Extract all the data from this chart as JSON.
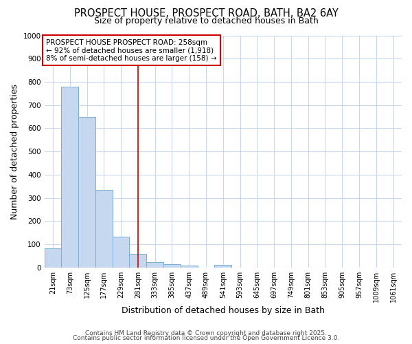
{
  "title1": "PROSPECT HOUSE, PROSPECT ROAD, BATH, BA2 6AY",
  "title2": "Size of property relative to detached houses in Bath",
  "xlabel": "Distribution of detached houses by size in Bath",
  "ylabel": "Number of detached properties",
  "categories": [
    "21sqm",
    "73sqm",
    "125sqm",
    "177sqm",
    "229sqm",
    "281sqm",
    "333sqm",
    "385sqm",
    "437sqm",
    "489sqm",
    "541sqm",
    "593sqm",
    "645sqm",
    "697sqm",
    "749sqm",
    "801sqm",
    "853sqm",
    "905sqm",
    "957sqm",
    "1009sqm",
    "1061sqm"
  ],
  "values": [
    83,
    780,
    648,
    335,
    133,
    58,
    22,
    15,
    8,
    0,
    10,
    0,
    0,
    0,
    0,
    0,
    0,
    0,
    0,
    0,
    0
  ],
  "bar_color": "#c5d8f0",
  "bar_edge_color": "#7aafd4",
  "vline_x": 5,
  "vline_color": "#cc0000",
  "annotation_text": "PROSPECT HOUSE PROSPECT ROAD: 258sqm\n← 92% of detached houses are smaller (1,918)\n8% of semi-detached houses are larger (158) →",
  "annotation_box_color": "#ffffff",
  "annotation_box_edge": "#cc0000",
  "ylim": [
    0,
    1000
  ],
  "yticks": [
    0,
    100,
    200,
    300,
    400,
    500,
    600,
    700,
    800,
    900,
    1000
  ],
  "footer1": "Contains HM Land Registry data © Crown copyright and database right 2025.",
  "footer2": "Contains public sector information licensed under the Open Government Licence 3.0.",
  "bg_color": "#ffffff",
  "grid_color": "#c8d8f0",
  "title_fontsize": 10.5,
  "subtitle_fontsize": 9,
  "label_fontsize": 9,
  "tick_fontsize": 7,
  "footer_fontsize": 6.5
}
